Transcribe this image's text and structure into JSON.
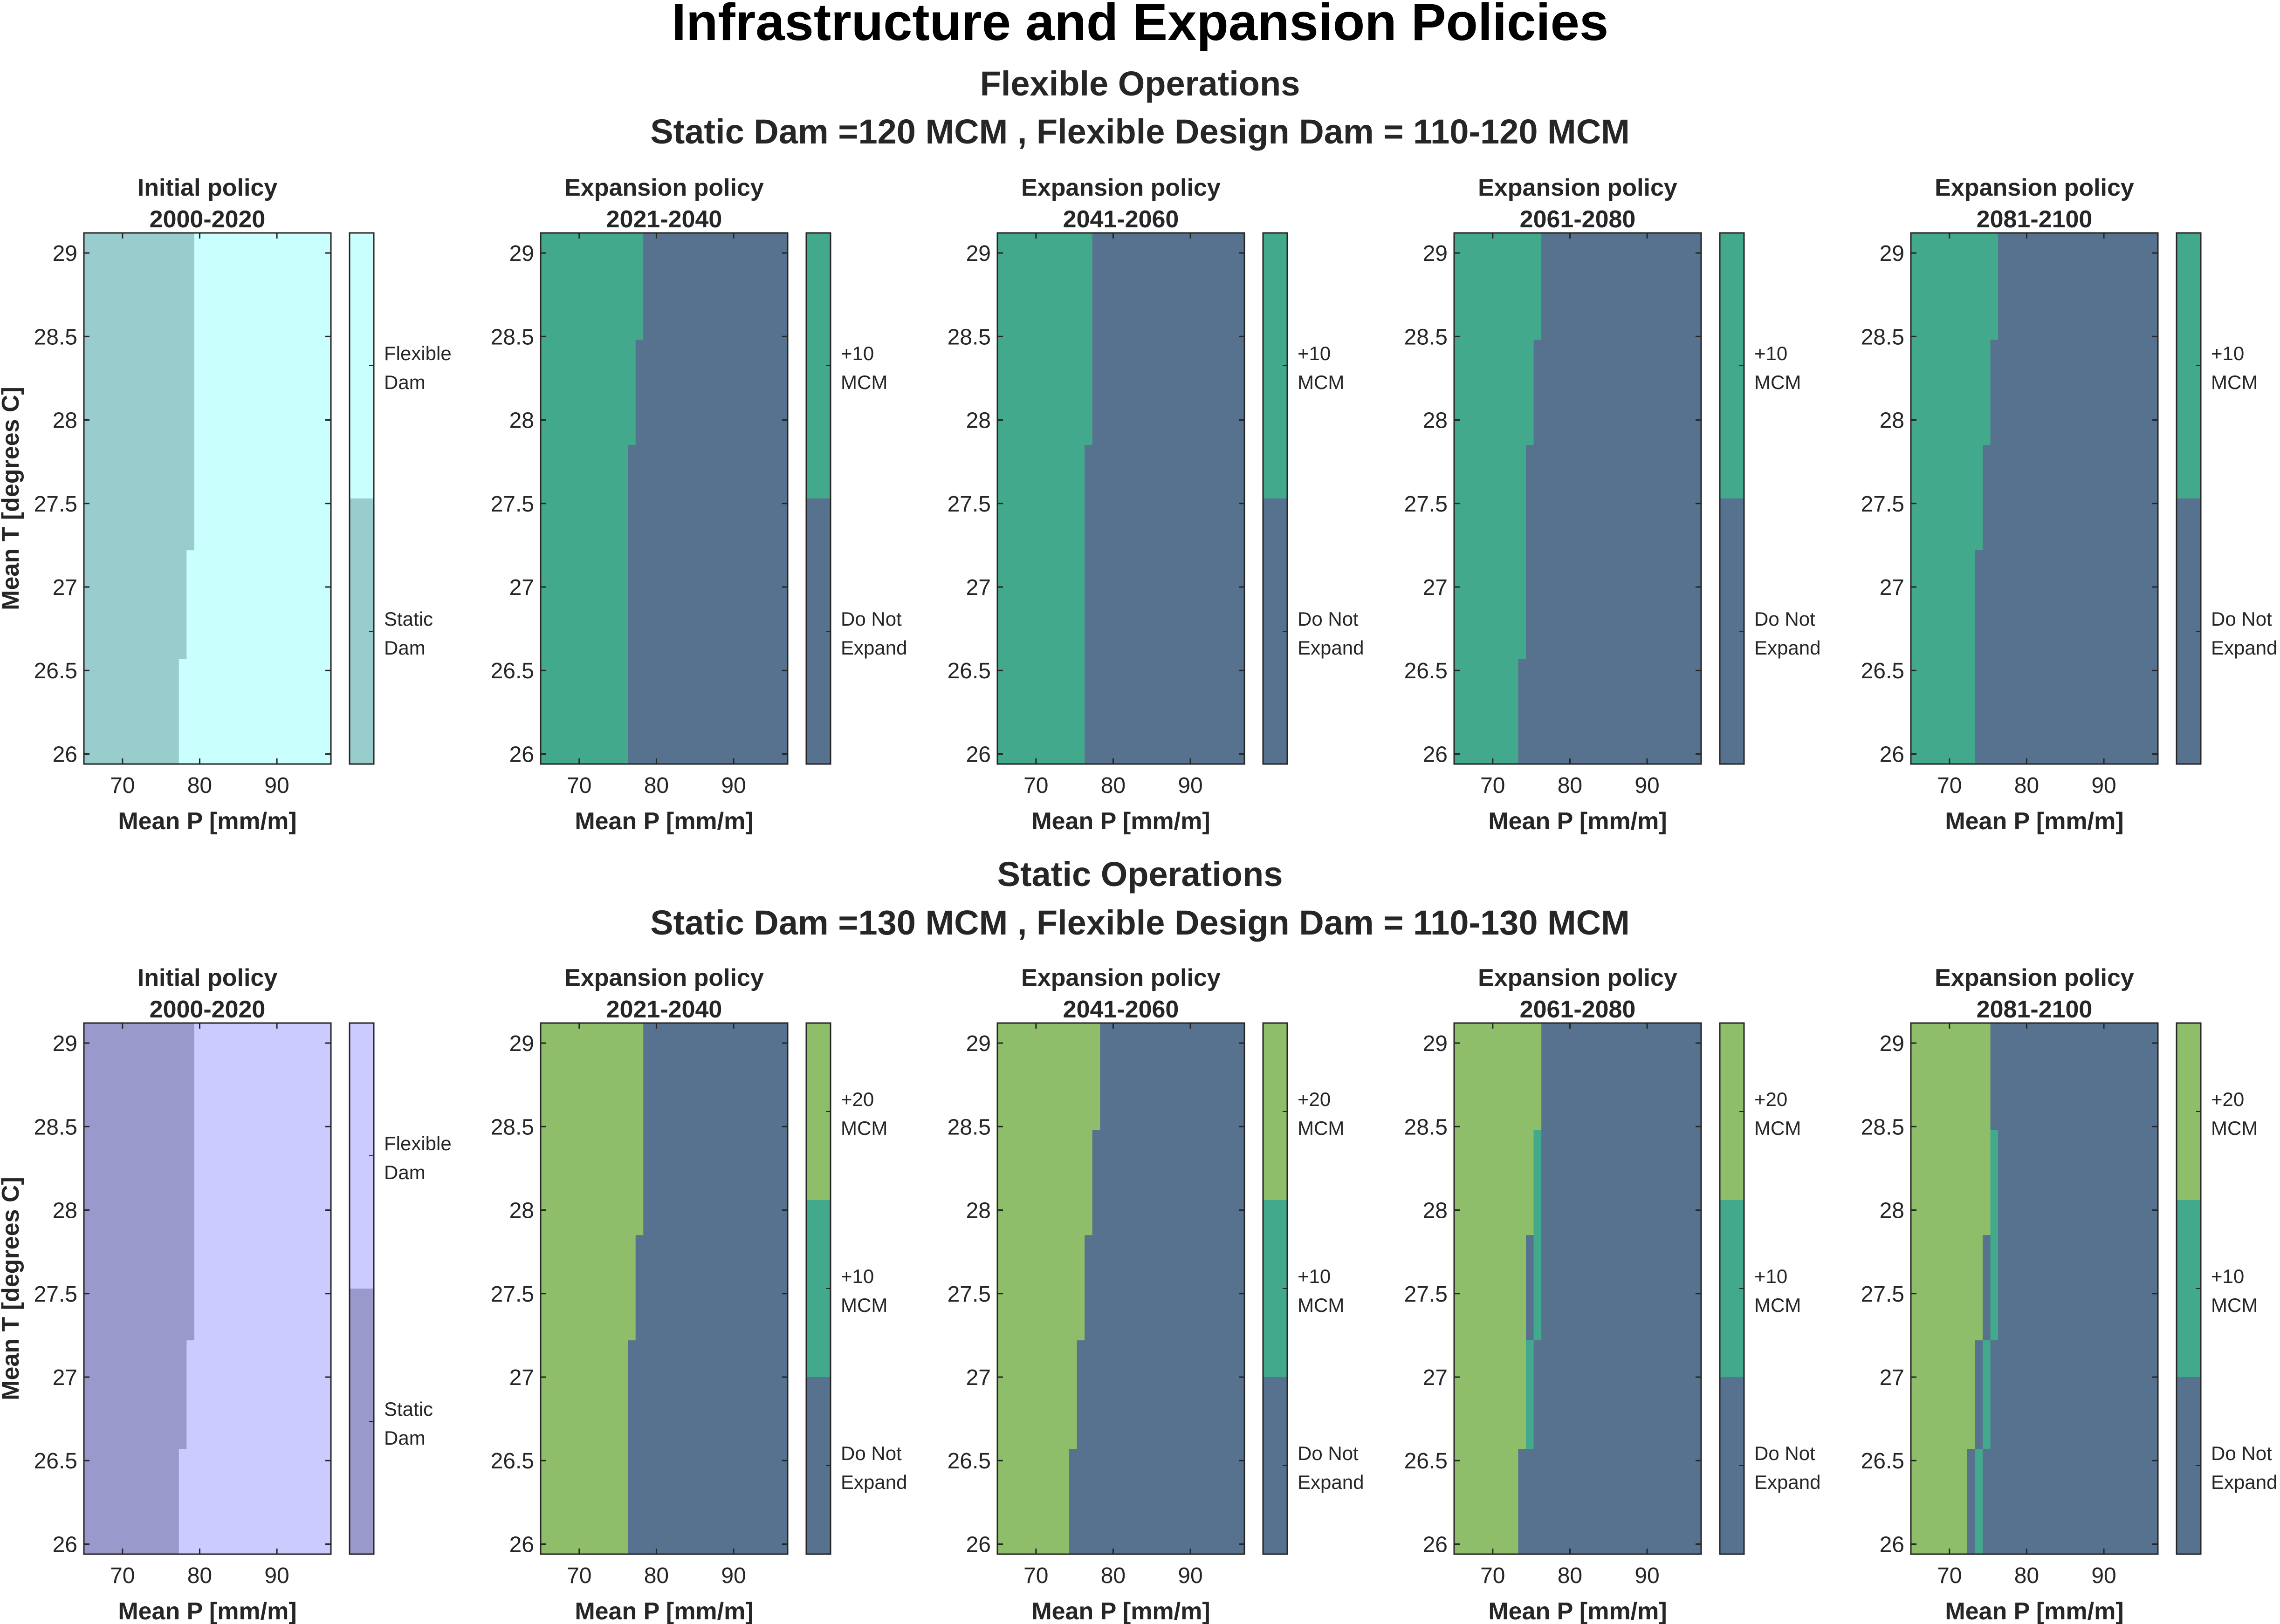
{
  "figure": {
    "title": "Infrastructure and Expansion Policies",
    "colors": {
      "flex_light": "#c9fffd",
      "flex_dark": "#99cccd",
      "static_light": "#cccbff",
      "static_dark": "#9999cc",
      "expand_10": "#43a98c",
      "expand_20": "#8fbe6a",
      "no_expand": "#56728f"
    }
  },
  "sections": [
    {
      "title_line1": "Flexible Operations",
      "title_line2": "Static Dam =120 MCM , Flexible Design Dam = 110-120 MCM"
    },
    {
      "title_line1": "Static Operations",
      "title_line2": "Static Dam =130 MCM , Flexible Design Dam = 110-130 MCM"
    }
  ],
  "chart_data": [
    {
      "type": "heatmap",
      "title": "Initial policy 2000-2020",
      "xlabel": "Mean P [mm/m]",
      "ylabel": "Mean T [degrees C]",
      "xlim": [
        65,
        97
      ],
      "ylim": [
        25.94,
        29.12
      ],
      "xticks": [
        70,
        80,
        90
      ],
      "yticks": [
        26,
        26.5,
        27,
        27.5,
        28,
        28.5,
        29
      ],
      "classes": [
        "Static Dam",
        "Flexible Dam"
      ],
      "class_colors": [
        "#99cccd",
        "#c9fffd"
      ],
      "boundary": [
        [
          25.94,
          76.3
        ],
        [
          26.57,
          77.3
        ],
        [
          27.22,
          78.3
        ],
        [
          27.85,
          79.3
        ],
        [
          29.12,
          79.3
        ]
      ],
      "left_class": 0,
      "right_class": 1
    },
    {
      "type": "heatmap",
      "title": "Expansion policy 2021-2040",
      "xlabel": "Mean P [mm/m]",
      "ylabel": "",
      "xlim": [
        65,
        97
      ],
      "ylim": [
        25.94,
        29.12
      ],
      "xticks": [
        70,
        80,
        90
      ],
      "yticks": [
        26,
        26.5,
        27,
        27.5,
        28,
        28.5,
        29
      ],
      "classes": [
        "Do Not Expand",
        "+10 MCM"
      ],
      "class_colors": [
        "#56728f",
        "#43a98c"
      ],
      "boundary": [
        [
          25.94,
          75.3
        ],
        [
          27.85,
          76.3
        ],
        [
          28.48,
          77.3
        ],
        [
          29.12,
          78.3
        ]
      ],
      "left_class": 1,
      "right_class": 0
    },
    {
      "type": "heatmap",
      "title": "Expansion policy 2041-2060",
      "xlabel": "Mean P [mm/m]",
      "ylabel": "",
      "xlim": [
        65,
        97
      ],
      "ylim": [
        25.94,
        29.12
      ],
      "xticks": [
        70,
        80,
        90
      ],
      "yticks": [
        26,
        26.5,
        27,
        27.5,
        28,
        28.5,
        29
      ],
      "classes": [
        "Do Not Expand",
        "+10 MCM"
      ],
      "class_colors": [
        "#56728f",
        "#43a98c"
      ],
      "boundary": [
        [
          25.94,
          75.3
        ],
        [
          27.85,
          76.3
        ],
        [
          28.48,
          77.3
        ],
        [
          29.12,
          77.3
        ]
      ],
      "left_class": 1,
      "right_class": 0
    },
    {
      "type": "heatmap",
      "title": "Expansion policy 2061-2080",
      "xlabel": "Mean P [mm/m]",
      "ylabel": "",
      "xlim": [
        65,
        97
      ],
      "ylim": [
        25.94,
        29.12
      ],
      "xticks": [
        70,
        80,
        90
      ],
      "yticks": [
        26,
        26.5,
        27,
        27.5,
        28,
        28.5,
        29
      ],
      "classes": [
        "Do Not Expand",
        "+10 MCM"
      ],
      "class_colors": [
        "#56728f",
        "#43a98c"
      ],
      "boundary": [
        [
          26.57,
          73.3
        ],
        [
          27.85,
          74.3
        ],
        [
          28.48,
          75.3
        ],
        [
          29.12,
          76.3
        ]
      ],
      "left_class": 1,
      "right_class": 0
    },
    {
      "type": "heatmap",
      "title": "Expansion policy 2081-2100",
      "xlabel": "Mean P [mm/m]",
      "ylabel": "",
      "xlim": [
        65,
        97
      ],
      "ylim": [
        25.94,
        29.12
      ],
      "xticks": [
        70,
        80,
        90
      ],
      "yticks": [
        26,
        26.5,
        27,
        27.5,
        28,
        28.5,
        29
      ],
      "classes": [
        "Do Not Expand",
        "+10 MCM"
      ],
      "class_colors": [
        "#56728f",
        "#43a98c"
      ],
      "boundary": [
        [
          27.22,
          73.3
        ],
        [
          27.85,
          74.3
        ],
        [
          28.48,
          75.3
        ],
        [
          29.12,
          76.3
        ]
      ],
      "left_class": 1,
      "right_class": 0
    },
    {
      "type": "heatmap",
      "title": "Initial policy 2000-2020",
      "xlabel": "Mean P [mm/m]",
      "ylabel": "Mean T [degrees C]",
      "xlim": [
        65,
        97
      ],
      "ylim": [
        25.94,
        29.12
      ],
      "xticks": [
        70,
        80,
        90
      ],
      "yticks": [
        26,
        26.5,
        27,
        27.5,
        28,
        28.5,
        29
      ],
      "classes": [
        "Static Dam",
        "Flexible Dam"
      ],
      "class_colors": [
        "#9999cc",
        "#cccbff"
      ],
      "boundary": [
        [
          25.94,
          76.3
        ],
        [
          26.57,
          77.3
        ],
        [
          27.22,
          78.3
        ],
        [
          27.85,
          79.3
        ],
        [
          29.12,
          79.3
        ]
      ],
      "left_class": 0,
      "right_class": 1
    },
    {
      "type": "heatmap",
      "title": "Expansion policy 2021-2040",
      "xlabel": "Mean P [mm/m]",
      "ylabel": "",
      "xlim": [
        65,
        97
      ],
      "ylim": [
        25.94,
        29.12
      ],
      "xticks": [
        70,
        80,
        90
      ],
      "yticks": [
        26,
        26.5,
        27,
        27.5,
        28,
        28.5,
        29
      ],
      "classes": [
        "Do Not Expand",
        "+10 MCM",
        "+20 MCM"
      ],
      "class_colors": [
        "#56728f",
        "#43a98c",
        "#8fbe6a"
      ],
      "boundary": [
        [
          25.94,
          75.3
        ],
        [
          27.22,
          76.3
        ],
        [
          27.85,
          77.3
        ],
        [
          28.48,
          78.3
        ],
        [
          29.12,
          78.3
        ]
      ],
      "left_class": 2,
      "right_class": 0
    },
    {
      "type": "heatmap",
      "title": "Expansion policy 2041-2060",
      "xlabel": "Mean P [mm/m]",
      "ylabel": "",
      "xlim": [
        65,
        97
      ],
      "ylim": [
        25.94,
        29.12
      ],
      "xticks": [
        70,
        80,
        90
      ],
      "yticks": [
        26,
        26.5,
        27,
        27.5,
        28,
        28.5,
        29
      ],
      "classes": [
        "Do Not Expand",
        "+10 MCM",
        "+20 MCM"
      ],
      "class_colors": [
        "#56728f",
        "#43a98c",
        "#8fbe6a"
      ],
      "boundary": [
        [
          26.57,
          74.3
        ],
        [
          27.22,
          75.3
        ],
        [
          27.85,
          76.3
        ],
        [
          28.48,
          77.3
        ],
        [
          29.12,
          78.3
        ]
      ],
      "left_class": 2,
      "right_class": 0
    },
    {
      "type": "heatmap",
      "title": "Expansion policy 2061-2080",
      "xlabel": "Mean P [mm/m]",
      "ylabel": "",
      "xlim": [
        65,
        97
      ],
      "ylim": [
        25.94,
        29.12
      ],
      "xticks": [
        70,
        80,
        90
      ],
      "yticks": [
        26,
        26.5,
        27,
        27.5,
        28,
        28.5,
        29
      ],
      "classes": [
        "Do Not Expand",
        "+10 MCM",
        "+20 MCM"
      ],
      "class_colors": [
        "#56728f",
        "#43a98c",
        "#8fbe6a"
      ],
      "boundary": [
        [
          26.57,
          73.3
        ],
        [
          27.85,
          74.3
        ],
        [
          28.48,
          75.3
        ],
        [
          29.12,
          76.3
        ]
      ],
      "mid_band": [
        [
          27.22,
          74.3,
          75.3
        ],
        [
          28.48,
          75.3,
          76.3
        ]
      ],
      "left_class": 2,
      "right_class": 0
    },
    {
      "type": "heatmap",
      "title": "Expansion policy 2081-2100",
      "xlabel": "Mean P [mm/m]",
      "ylabel": "",
      "xlim": [
        65,
        97
      ],
      "ylim": [
        25.94,
        29.12
      ],
      "xticks": [
        70,
        80,
        90
      ],
      "yticks": [
        26,
        26.5,
        27,
        27.5,
        28,
        28.5,
        29
      ],
      "classes": [
        "Do Not Expand",
        "+10 MCM",
        "+20 MCM"
      ],
      "class_colors": [
        "#56728f",
        "#43a98c",
        "#8fbe6a"
      ],
      "boundary": [
        [
          26.57,
          72.3
        ],
        [
          27.22,
          73.3
        ],
        [
          27.85,
          74.3
        ],
        [
          29.12,
          75.3
        ]
      ],
      "mid_band": [
        [
          26.57,
          73.3,
          74.3
        ],
        [
          27.22,
          74.3,
          75.3
        ],
        [
          28.48,
          75.3,
          76.3
        ]
      ],
      "left_class": 2,
      "right_class": 0
    }
  ]
}
